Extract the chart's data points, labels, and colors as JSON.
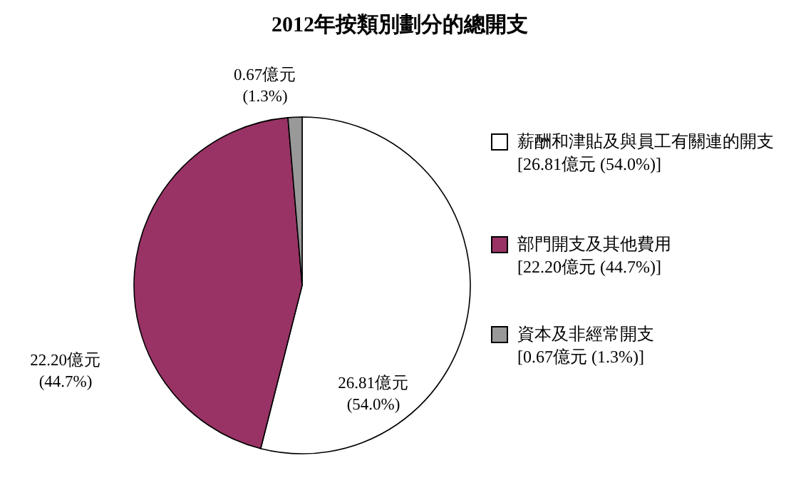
{
  "chart_data": {
    "type": "pie",
    "title": "2012年按類別劃分的總開支",
    "categories": [
      "薪酬和津貼及與員工有關連的開支",
      "部門開支及其他費用",
      "資本及非經常開支"
    ],
    "values": [
      26.81,
      22.2,
      0.67
    ],
    "colors": [
      "#ffffff",
      "#993366",
      "#999999"
    ],
    "value_labels": [
      "26.81億元 (54.0%)",
      "22.20億元 (44.7%)",
      "0.67億元 (1.3%)"
    ],
    "annotations": [
      "[26.81億元 (54.0%)]",
      "[22.20億元 (44.7%)]",
      "[0.67億元 (1.3%)]"
    ],
    "legend": "right"
  }
}
